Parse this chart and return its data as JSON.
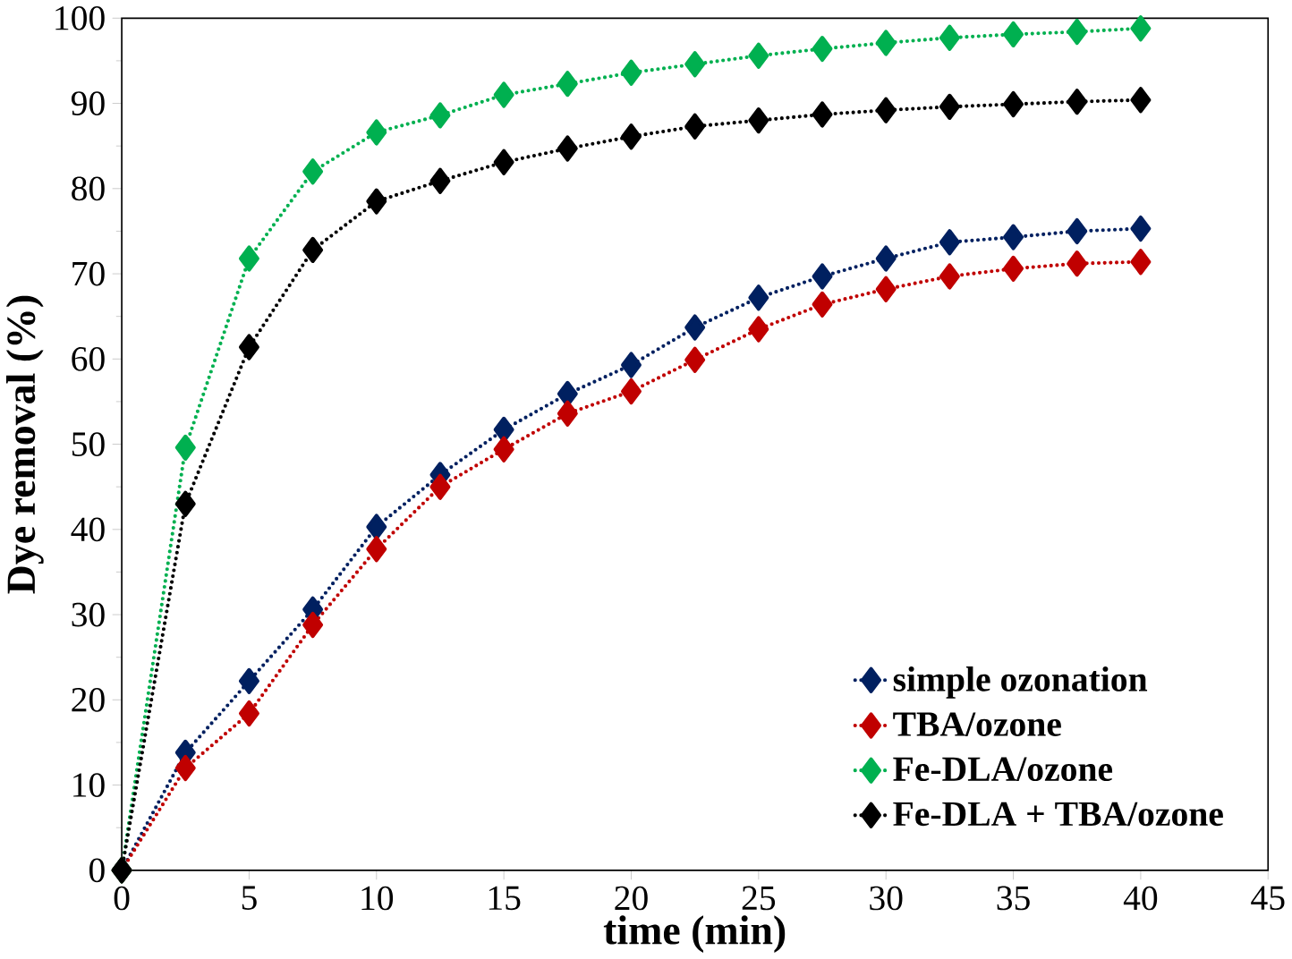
{
  "chart_data": {
    "type": "line",
    "xlabel": "time (min)",
    "ylabel": "Dye removal (%)",
    "x": [
      0,
      2.5,
      5,
      7.5,
      10,
      12.5,
      15,
      17.5,
      20,
      22.5,
      25,
      27.5,
      30,
      32.5,
      35,
      37.5,
      40
    ],
    "series": [
      {
        "name": "simple ozonation",
        "color": "#002060",
        "values": [
          0,
          13.8,
          22.2,
          30.6,
          40.3,
          46.4,
          51.7,
          55.9,
          59.3,
          63.7,
          67.2,
          69.7,
          71.8,
          73.7,
          74.3,
          75.0,
          75.3
        ]
      },
      {
        "name": "TBA/ozone",
        "color": "#c00000",
        "values": [
          0,
          12.0,
          18.4,
          28.8,
          37.7,
          45.0,
          49.4,
          53.6,
          56.2,
          59.9,
          63.5,
          66.4,
          68.2,
          69.7,
          70.6,
          71.2,
          71.4
        ]
      },
      {
        "name": "Fe-DLA/ozone",
        "color": "#00b050",
        "values": [
          0,
          49.6,
          71.8,
          82.0,
          86.6,
          88.6,
          91.0,
          92.3,
          93.6,
          94.6,
          95.6,
          96.4,
          97.1,
          97.7,
          98.1,
          98.4,
          98.8
        ]
      },
      {
        "name": "Fe-DLA + TBA/ozone",
        "color": "#000000",
        "values": [
          0,
          43.0,
          61.4,
          72.8,
          78.5,
          80.9,
          83.1,
          84.7,
          86.1,
          87.3,
          88.0,
          88.7,
          89.2,
          89.6,
          89.9,
          90.2,
          90.4
        ]
      }
    ],
    "xlim": [
      0,
      45
    ],
    "xticks": [
      0,
      5,
      10,
      15,
      20,
      25,
      30,
      35,
      40,
      45
    ],
    "ylim": [
      0,
      100
    ],
    "yticks": [
      0,
      10,
      20,
      30,
      40,
      50,
      60,
      70,
      80,
      90,
      100
    ],
    "grid": false,
    "legend": "bottom right",
    "marker": "diamond",
    "line_style": "dotted"
  }
}
